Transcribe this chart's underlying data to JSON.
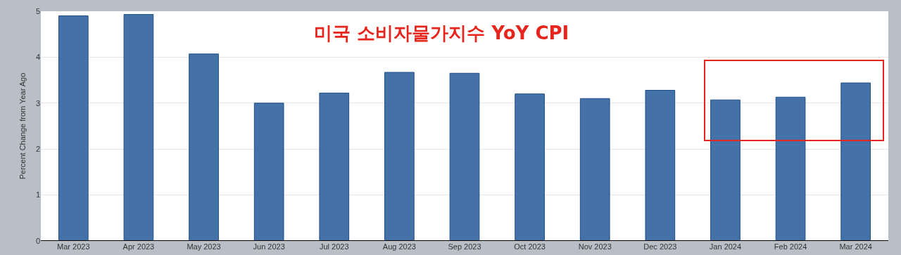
{
  "chart_data": {
    "type": "bar",
    "title": "미국 소비자물가지수 YoY CPI",
    "ylabel": "Percent Change from Year Ago",
    "categories": [
      "Mar 2023",
      "Apr 2023",
      "May 2023",
      "Jun 2023",
      "Jul 2023",
      "Aug 2023",
      "Sep 2023",
      "Oct 2023",
      "Nov 2023",
      "Dec 2023",
      "Jan 2024",
      "Feb 2024",
      "Mar 2024"
    ],
    "values": [
      4.9,
      4.93,
      4.07,
      3.0,
      3.22,
      3.67,
      3.65,
      3.2,
      3.1,
      3.28,
      3.07,
      3.13,
      3.44
    ],
    "color": "#4472a8",
    "ylim": [
      0,
      5
    ],
    "yticks": [
      0,
      1,
      2,
      3,
      4,
      5
    ],
    "grid": "y"
  }
}
